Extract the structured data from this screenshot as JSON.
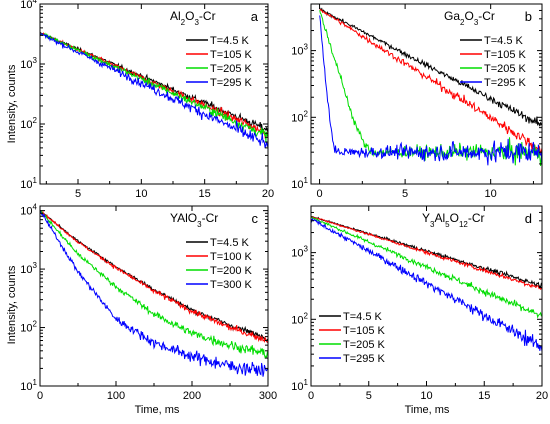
{
  "figure": {
    "ylabel": "Intensity, counts",
    "xlabel": "Time, ms"
  },
  "chart_data": [
    {
      "type": "line",
      "panel": "a",
      "title_parts": [
        {
          "t": "Al"
        },
        {
          "t": "2",
          "sub": true
        },
        {
          "t": "O"
        },
        {
          "t": "3",
          "sub": true
        },
        {
          "t": "-Cr"
        }
      ],
      "xlim": [
        2,
        20
      ],
      "ylim": [
        10,
        10000
      ],
      "yscale": "log",
      "xticks": [
        5,
        10,
        15,
        20
      ],
      "show_xticklabels": true,
      "show_ylabel": true,
      "show_xlabel": false,
      "legend": "top-right",
      "series": [
        {
          "name": "T=4.5 K",
          "color": "#000000",
          "x": [
            2,
            20
          ],
          "y": [
            3300,
            80
          ],
          "noise": 0.05
        },
        {
          "name": "T=105 K",
          "color": "#ff0000",
          "x": [
            2,
            20
          ],
          "y": [
            3300,
            70
          ],
          "noise": 0.06
        },
        {
          "name": "T=205 K",
          "color": "#00dd00",
          "x": [
            2,
            20
          ],
          "y": [
            3300,
            62
          ],
          "noise": 0.07
        },
        {
          "name": "T=295 K",
          "color": "#0000ff",
          "x": [
            2,
            20
          ],
          "y": [
            3200,
            45
          ],
          "noise": 0.09
        }
      ]
    },
    {
      "type": "line",
      "panel": "b",
      "title_parts": [
        {
          "t": "Ga"
        },
        {
          "t": "2",
          "sub": true
        },
        {
          "t": "O"
        },
        {
          "t": "3",
          "sub": true
        },
        {
          "t": "-Cr"
        }
      ],
      "xlim": [
        -0.5,
        13
      ],
      "ylim": [
        10,
        5000
      ],
      "yscale": "log",
      "xticks": [
        0,
        5,
        10
      ],
      "show_xticklabels": true,
      "show_ylabel": false,
      "show_xlabel": false,
      "legend": "top-right",
      "series": [
        {
          "name": "T=4.5 K",
          "color": "#000000",
          "x": [
            0,
            13
          ],
          "y": [
            4200,
            75
          ],
          "noise": 0.05
        },
        {
          "name": "T=105 K",
          "color": "#ff0000",
          "x": [
            0,
            13
          ],
          "y": [
            4200,
            32
          ],
          "noise": 0.07
        },
        {
          "name": "T=205 K",
          "color": "#00dd00",
          "x": [
            0,
            1,
            2,
            2.6,
            3
          ],
          "y": [
            4000,
            600,
            90,
            40,
            30
          ],
          "noise": 0.12
        },
        {
          "name": "T=295 K",
          "color": "#0000ff",
          "x": [
            0,
            0.2,
            0.5,
            0.8,
            1.0,
            13
          ],
          "y": [
            3600,
            900,
            150,
            40,
            30,
            30
          ],
          "noise": 0.15
        }
      ]
    },
    {
      "type": "line",
      "panel": "c",
      "title_parts": [
        {
          "t": "YAlO"
        },
        {
          "t": "3",
          "sub": true
        },
        {
          "t": "-Cr"
        }
      ],
      "xlim": [
        0,
        300
      ],
      "ylim": [
        10,
        12000
      ],
      "yscale": "log",
      "xticks": [
        0,
        100,
        200,
        300
      ],
      "show_xticklabels": true,
      "show_ylabel": true,
      "show_xlabel": true,
      "legend": "top-right",
      "series": [
        {
          "name": "T=4.5 K",
          "color": "#000000",
          "x": [
            0,
            50,
            100,
            150,
            200,
            250,
            300
          ],
          "y": [
            10000,
            3000,
            1100,
            450,
            200,
            110,
            65
          ],
          "noise": 0.04
        },
        {
          "name": "T=100 K",
          "color": "#ff0000",
          "x": [
            0,
            50,
            100,
            150,
            200,
            250,
            300
          ],
          "y": [
            10000,
            2900,
            1050,
            420,
            190,
            100,
            60
          ],
          "noise": 0.05
        },
        {
          "name": "T=200 K",
          "color": "#00dd00",
          "x": [
            0,
            50,
            100,
            150,
            200,
            250,
            300
          ],
          "y": [
            10000,
            1800,
            500,
            170,
            80,
            50,
            35
          ],
          "noise": 0.07
        },
        {
          "name": "T=300 K",
          "color": "#0000ff",
          "x": [
            0,
            50,
            100,
            150,
            200,
            250,
            300
          ],
          "y": [
            10000,
            900,
            140,
            55,
            32,
            22,
            18
          ],
          "noise": 0.1
        }
      ]
    },
    {
      "type": "line",
      "panel": "d",
      "title_parts": [
        {
          "t": "Y"
        },
        {
          "t": "3",
          "sub": true
        },
        {
          "t": "Al"
        },
        {
          "t": "5",
          "sub": true
        },
        {
          "t": "O"
        },
        {
          "t": "12",
          "sub": true
        },
        {
          "t": "-Cr"
        }
      ],
      "xlim": [
        0,
        20
      ],
      "ylim": [
        10,
        5000
      ],
      "yscale": "log",
      "xticks": [
        0,
        5,
        10,
        15,
        20
      ],
      "show_xticklabels": true,
      "show_ylabel": false,
      "show_xlabel": true,
      "legend": "bottom-left",
      "series": [
        {
          "name": "T=4.5 K",
          "color": "#000000",
          "x": [
            0,
            20
          ],
          "y": [
            3500,
            320
          ],
          "noise": 0.03
        },
        {
          "name": "T=105 K",
          "color": "#ff0000",
          "x": [
            0,
            20
          ],
          "y": [
            3500,
            290
          ],
          "noise": 0.03
        },
        {
          "name": "T=205 K",
          "color": "#00dd00",
          "x": [
            0,
            20
          ],
          "y": [
            3400,
            110
          ],
          "noise": 0.05
        },
        {
          "name": "T=295 K",
          "color": "#0000ff",
          "x": [
            0,
            20
          ],
          "y": [
            3200,
            38
          ],
          "noise": 0.08
        }
      ]
    }
  ]
}
